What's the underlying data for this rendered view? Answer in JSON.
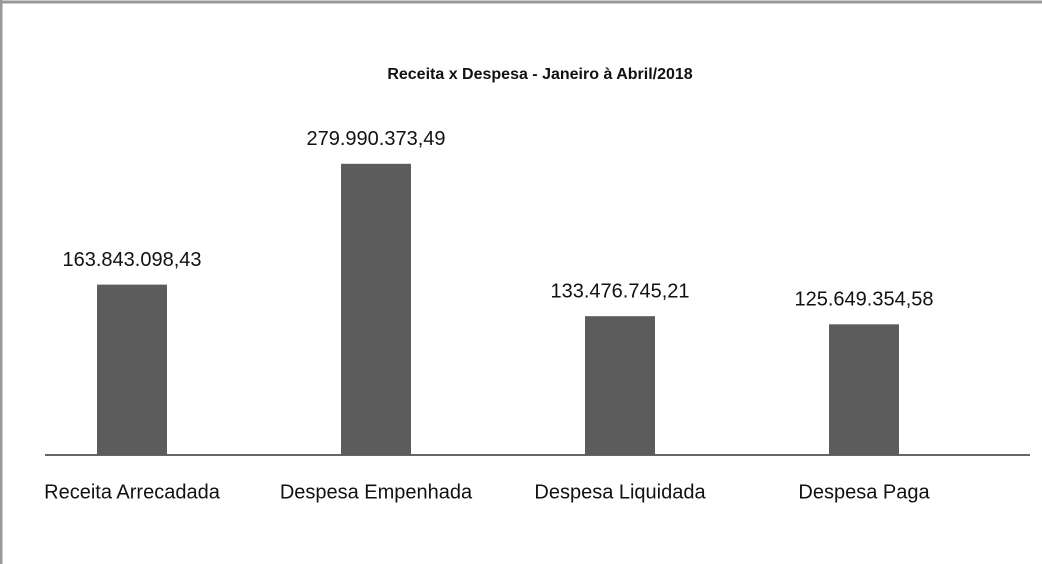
{
  "chart_data": {
    "type": "bar",
    "title": "Receita x Despesa - Janeiro à Abril/2018",
    "categories": [
      "Receita Arrecadada",
      "Despesa Empenhada",
      "Despesa Liquidada",
      "Despesa Paga"
    ],
    "values": [
      163843098.43,
      279990373.49,
      133476745.21,
      125649354.58
    ],
    "value_labels": [
      "163.843.098,43",
      "279.990.373,49",
      "133.476.745,21",
      "125.649.354,58"
    ],
    "color": "#5c5c5c",
    "ylim": [
      0,
      300000000
    ]
  }
}
